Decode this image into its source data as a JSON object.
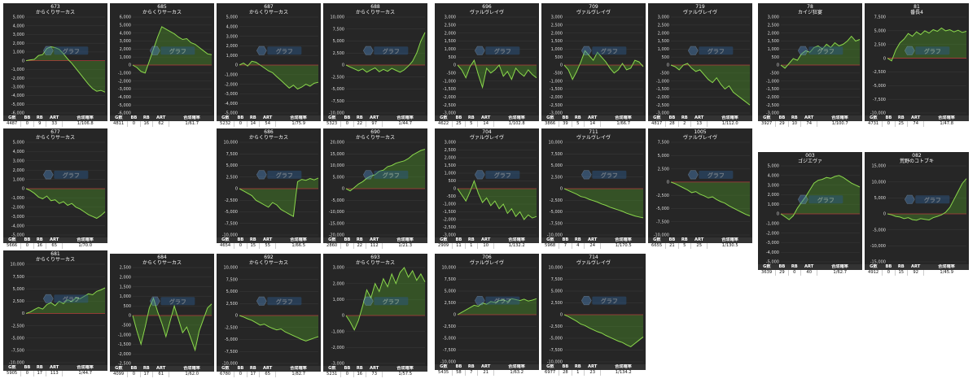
{
  "table_headers": [
    "G数",
    "BB",
    "RB",
    "ART",
    "合成確率"
  ],
  "watermark": "グラフ",
  "colors": {
    "line": "#8bd84c",
    "fill": "#4a8a28",
    "zero": "#b03a3a",
    "grid": "#3a3a3a",
    "bg": "#262626"
  },
  "chart_data": [
    {
      "type": "line",
      "id": "673",
      "title": "673",
      "subtitle": "からくりサーカス",
      "yticks": [
        5000,
        4000,
        3000,
        2000,
        1000,
        0,
        -1000,
        -2000,
        -3000,
        -4000,
        -5000,
        -6000
      ],
      "ylim": [
        -6000,
        5000
      ],
      "values": [
        0,
        100,
        150,
        600,
        700,
        1400,
        1600,
        1500,
        1300,
        800,
        200,
        -300,
        -900,
        -1500,
        -2100,
        -2700,
        -3200,
        -3500,
        -3400,
        -3600
      ],
      "stats": [
        "4487",
        "0",
        "9",
        "33",
        "1/106.8"
      ]
    },
    {
      "type": "line",
      "id": "685",
      "title": "685",
      "subtitle": "からくりサーカス",
      "yticks": [
        6000,
        5000,
        4000,
        3000,
        2000,
        1000,
        0,
        -1000,
        -2000,
        -3000,
        -4000,
        -5000,
        -6000
      ],
      "ylim": [
        -6000,
        6000
      ],
      "values": [
        0,
        -300,
        -800,
        -1000,
        500,
        2000,
        3500,
        4800,
        4500,
        4200,
        3900,
        3500,
        3200,
        3300,
        2800,
        2600,
        2200,
        1800,
        1400,
        1300
      ],
      "stats": [
        "4811",
        "0",
        "16",
        "62",
        "1/61.7"
      ]
    },
    {
      "type": "line",
      "id": "687",
      "title": "687",
      "subtitle": "からくりサーカス",
      "yticks": [
        5000,
        4000,
        3000,
        2000,
        1000,
        0,
        -1000,
        -2000,
        -3000,
        -4000,
        -5000
      ],
      "ylim": [
        -5000,
        5000
      ],
      "values": [
        0,
        200,
        -100,
        400,
        300,
        0,
        -300,
        -600,
        -800,
        -1200,
        -1600,
        -2000,
        -2400,
        -2100,
        -2500,
        -2300,
        -2000,
        -2200,
        -1900,
        -1800
      ],
      "stats": [
        "5232",
        "0",
        "14",
        "54",
        "1/75.9"
      ]
    },
    {
      "type": "line",
      "id": "688",
      "title": "688",
      "subtitle": "からくりサーカス",
      "yticks": [
        10000,
        7500,
        5000,
        2500,
        0,
        -2500,
        -5000,
        -7500,
        -10000
      ],
      "ylim": [
        -10000,
        10000
      ],
      "values": [
        0,
        -400,
        -800,
        -1200,
        -800,
        -1500,
        -1000,
        -600,
        -1400,
        -900,
        -1300,
        -700,
        -1100,
        -1500,
        -1000,
        -200,
        800,
        2500,
        5000,
        6800
      ],
      "stats": [
        "5323",
        "0",
        "22",
        "97",
        "1/44.7"
      ]
    },
    {
      "type": "line",
      "id": "696",
      "title": "696",
      "subtitle": "ヴァルヴレイヴ",
      "yticks": [
        3000,
        2500,
        2000,
        1500,
        1000,
        500,
        0,
        -500,
        -1000,
        -1500,
        -2000,
        -2500,
        -3000
      ],
      "ylim": [
        -3000,
        3000
      ],
      "values": [
        0,
        -300,
        -800,
        -100,
        300,
        -600,
        -1400,
        -200,
        -500,
        -300,
        0,
        -700,
        -400,
        -900,
        -200,
        -500,
        -700,
        -300,
        -600,
        -800
      ],
      "stats": [
        "4622",
        "25",
        "5",
        "14",
        "1/102.8"
      ]
    },
    {
      "type": "line",
      "id": "709",
      "title": "709",
      "subtitle": "ヴァルヴレイヴ",
      "yticks": [
        3000,
        2500,
        2000,
        1500,
        1000,
        500,
        0,
        -500,
        -1000,
        -1500,
        -2000,
        -2500,
        -3000
      ],
      "ylim": [
        -3000,
        3000
      ],
      "values": [
        0,
        -300,
        -900,
        -400,
        200,
        900,
        600,
        300,
        800,
        500,
        200,
        -200,
        -500,
        -300,
        100,
        -300,
        -200,
        300,
        200,
        -100
      ],
      "stats": [
        "3866",
        "39",
        "5",
        "14",
        "1/66.7"
      ]
    },
    {
      "type": "line",
      "id": "719",
      "title": "719",
      "subtitle": "ヴァルヴレイヴ",
      "yticks": [
        3000,
        2500,
        2000,
        1500,
        1000,
        500,
        0,
        -500,
        -1000,
        -1500,
        -2000,
        -2500,
        -3000
      ],
      "ylim": [
        -3000,
        3000
      ],
      "values": [
        0,
        -100,
        -300,
        0,
        100,
        -200,
        -400,
        -300,
        -600,
        -900,
        -1100,
        -800,
        -1200,
        -1500,
        -1300,
        -1700,
        -1900,
        -2100,
        -2300,
        -2500
      ],
      "stats": [
        "4817",
        "28",
        "2",
        "13",
        "1/112.0"
      ]
    },
    {
      "type": "line",
      "id": "78",
      "title": "78",
      "subtitle": "カイジ狂宴",
      "yticks": [
        3000,
        2500,
        2000,
        1500,
        1000,
        500,
        0,
        -500,
        -1000,
        -1500,
        -2000,
        -2500,
        -3000
      ],
      "ylim": [
        -3000,
        3000
      ],
      "values": [
        0,
        -200,
        100,
        400,
        300,
        700,
        900,
        800,
        1100,
        1200,
        1000,
        1300,
        1100,
        1400,
        1200,
        1300,
        1500,
        1800,
        1500,
        1600
      ],
      "stats": [
        "3927",
        "29",
        "10",
        "74",
        "1/100.7"
      ]
    },
    {
      "type": "line",
      "id": "81",
      "title": "81",
      "subtitle": "番長4",
      "yticks": [
        7500,
        5000,
        2500,
        0,
        -2500,
        -5000,
        -7500,
        -10000
      ],
      "ylim": [
        -10000,
        7500
      ],
      "values": [
        0,
        -500,
        1500,
        2800,
        3500,
        4500,
        4000,
        4800,
        4300,
        5000,
        4600,
        5200,
        4900,
        5500,
        5000,
        5200,
        4800,
        5100,
        4700,
        4900
      ],
      "stats": [
        "4731",
        "0",
        "25",
        "74",
        "1/47.8"
      ]
    },
    {
      "type": "line",
      "id": "677",
      "title": "677",
      "subtitle": "からくりサーカス",
      "yticks": [
        5000,
        4000,
        3000,
        2000,
        1000,
        0,
        -1000,
        -2000,
        -3000,
        -4000,
        -5000
      ],
      "ylim": [
        -5000,
        5000
      ],
      "values": [
        0,
        -200,
        -500,
        -900,
        -1100,
        -800,
        -1300,
        -1200,
        -1600,
        -1400,
        -1800,
        -1600,
        -2000,
        -2200,
        -2500,
        -2800,
        -3000,
        -3200,
        -2900,
        -2500
      ],
      "stats": [
        "5666",
        "0",
        "16",
        "65",
        "1/70.0"
      ]
    },
    {
      "type": "line",
      "id": "686",
      "title": "686",
      "subtitle": "からくりサーカス",
      "yticks": [
        10000,
        7500,
        5000,
        2500,
        0,
        -2500,
        -5000,
        -7500,
        -10000
      ],
      "ylim": [
        -10000,
        10000
      ],
      "values": [
        0,
        -500,
        -1000,
        -1500,
        -2500,
        -3000,
        -3500,
        -4000,
        -3000,
        -3500,
        -4500,
        -5000,
        -5500,
        -6000,
        1500,
        2000,
        1800,
        2200,
        1900,
        2300
      ],
      "stats": [
        "4654",
        "0",
        "15",
        "55",
        "1/66.5"
      ]
    },
    {
      "type": "line",
      "id": "690",
      "title": "690",
      "subtitle": "からくりサーカス",
      "yticks": [
        20000,
        15000,
        10000,
        5000,
        0,
        -5000,
        -10000,
        -15000,
        -20000
      ],
      "ylim": [
        -20000,
        20000
      ],
      "values": [
        0,
        -1000,
        500,
        2000,
        3000,
        4500,
        5500,
        6000,
        7500,
        8000,
        9500,
        10000,
        11000,
        11500,
        12000,
        13000,
        14500,
        15500,
        16500,
        17000
      ],
      "stats": [
        "2860",
        "0",
        "22",
        "112",
        "1/21.3"
      ]
    },
    {
      "type": "line",
      "id": "704",
      "title": "704",
      "subtitle": "ヴァルヴレイヴ",
      "yticks": [
        3000,
        2500,
        2000,
        1500,
        1000,
        500,
        0,
        -500,
        -1000,
        -1500,
        -2000,
        -2500,
        -3000
      ],
      "ylim": [
        -3000,
        3000
      ],
      "values": [
        0,
        -400,
        -800,
        -200,
        500,
        -300,
        -900,
        -600,
        -1100,
        -800,
        -1300,
        -1000,
        -1600,
        -1300,
        -1800,
        -1500,
        -2000,
        -1700,
        -1900,
        -1800
      ],
      "stats": [
        "2909",
        "11",
        "1",
        "10",
        "1/132.2"
      ]
    },
    {
      "type": "line",
      "id": "711",
      "title": "711",
      "subtitle": "ヴァルヴレイヴ",
      "yticks": [
        10000,
        7500,
        5000,
        2500,
        0,
        -2500,
        -5000,
        -7500,
        -10000
      ],
      "ylim": [
        -10000,
        10000
      ],
      "values": [
        0,
        -400,
        -800,
        -1200,
        -1700,
        -1900,
        -2300,
        -2600,
        -2900,
        -3300,
        -3600,
        -4000,
        -4300,
        -4600,
        -4900,
        -5300,
        -5600,
        -5900,
        -6100,
        -6300
      ],
      "stats": [
        "5968",
        "7",
        "4",
        "24",
        "1/170.5"
      ]
    },
    {
      "type": "line",
      "id": "1005",
      "title": "1005",
      "subtitle": "ヴァルヴレイヴ",
      "yticks": [
        7500,
        5000,
        2500,
        0,
        -2500,
        -5000,
        -7500,
        -10000
      ],
      "ylim": [
        -10000,
        7500
      ],
      "values": [
        0,
        -300,
        -700,
        -1100,
        -1500,
        -2000,
        -1800,
        -2300,
        -2600,
        -3000,
        -2800,
        -3300,
        -3700,
        -4000,
        -4500,
        -4900,
        -5300,
        -5700,
        -6100,
        -6400
      ],
      "stats": [
        "6655",
        "21",
        "5",
        "25",
        "1/130.5"
      ]
    },
    {
      "type": "line",
      "id": "003",
      "title": "003",
      "subtitle": "ゴジエヴァ",
      "yticks": [
        5000,
        4000,
        3000,
        2000,
        1000,
        0,
        -1000,
        -2000,
        -3000,
        -4000,
        -5000
      ],
      "ylim": [
        -5000,
        5000
      ],
      "values": [
        0,
        -300,
        -600,
        -200,
        600,
        1200,
        1800,
        2500,
        3200,
        3500,
        3600,
        3800,
        3700,
        3900,
        4000,
        3800,
        3500,
        3200,
        3000,
        2800
      ],
      "stats": [
        "3639",
        "29",
        "0",
        "40",
        "1/62.7"
      ]
    },
    {
      "type": "line",
      "id": "082",
      "title": "082",
      "subtitle": "荒野のコトブキ",
      "yticks": [
        15000,
        10000,
        5000,
        0,
        -5000,
        -10000,
        -15000
      ],
      "ylim": [
        -15000,
        15000
      ],
      "values": [
        0,
        -300,
        -800,
        -1000,
        -1500,
        -1200,
        -1800,
        -2000,
        -1500,
        -1700,
        -1900,
        -1200,
        -800,
        -300,
        500,
        2000,
        4500,
        7000,
        9500,
        11000
      ],
      "stats": [
        "4912",
        "0",
        "15",
        "92",
        "1/45.9"
      ]
    },
    {
      "type": "line",
      "id": "681",
      "title": "681",
      "subtitle": "からくりサーカス",
      "yticks": [
        10000,
        7500,
        5000,
        2500,
        0,
        -2500,
        -5000,
        -7500,
        -10000
      ],
      "ylim": [
        -10000,
        10000
      ],
      "values": [
        0,
        300,
        800,
        1200,
        900,
        1800,
        2200,
        1600,
        2500,
        2000,
        2800,
        2400,
        3200,
        3000,
        3500,
        4000,
        3800,
        4500,
        4800,
        5200
      ],
      "stats": [
        "5905",
        "0",
        "17",
        "113",
        "1/44.7"
      ]
    },
    {
      "type": "line",
      "id": "684",
      "title": "684",
      "subtitle": "からくりサーカス",
      "yticks": [
        2500,
        2000,
        1500,
        1000,
        500,
        0,
        -500,
        -1000,
        -1500,
        -2000,
        -2500
      ],
      "ylim": [
        -2500,
        2500
      ],
      "values": [
        0,
        -800,
        -1500,
        -600,
        400,
        900,
        200,
        -400,
        -1100,
        -300,
        500,
        -200,
        -900,
        -600,
        -1200,
        -1800,
        -800,
        -200,
        400,
        600
      ],
      "stats": [
        "4099",
        "0",
        "17",
        "61",
        "1/62.0"
      ]
    },
    {
      "type": "line",
      "id": "692",
      "title": "692",
      "subtitle": "からくりサーカス",
      "yticks": [
        10000,
        7500,
        5000,
        2500,
        0,
        -2500,
        -5000,
        -7500,
        -10000
      ],
      "ylim": [
        -10000,
        10000
      ],
      "values": [
        0,
        -300,
        -700,
        -1000,
        -1500,
        -2000,
        -1800,
        -2300,
        -2700,
        -3000,
        -2800,
        -3400,
        -3800,
        -4200,
        -4600,
        -5000,
        -5300,
        -5000,
        -4700,
        -4400
      ],
      "stats": [
        "6780",
        "0",
        "17",
        "65",
        "1/82.7"
      ]
    },
    {
      "type": "line",
      "id": "693",
      "title": "693",
      "subtitle": "からくりサーカス",
      "yticks": [
        3000,
        2000,
        1000,
        0,
        -1000,
        -2000,
        -3000
      ],
      "ylim": [
        -3000,
        3000
      ],
      "values": [
        0,
        -400,
        -900,
        -300,
        600,
        1600,
        1100,
        2000,
        1500,
        2300,
        1800,
        2600,
        2000,
        2700,
        3000,
        2400,
        2800,
        2200,
        2600,
        2100
      ],
      "stats": [
        "5231",
        "0",
        "16",
        "73",
        "1/57.5"
      ]
    },
    {
      "type": "line",
      "id": "706",
      "title": "706",
      "subtitle": "ヴァルヴレイヴ",
      "yticks": [
        10000,
        7500,
        5000,
        2500,
        0,
        -2500,
        -5000,
        -7500,
        -10000
      ],
      "ylim": [
        -10000,
        10000
      ],
      "values": [
        0,
        500,
        1000,
        1500,
        2000,
        1800,
        2500,
        2200,
        2800,
        2600,
        3000,
        3200,
        2800,
        3400,
        3200,
        3000,
        3300,
        2900,
        3100,
        3400
      ],
      "stats": [
        "5435",
        "58",
        "7",
        "21",
        "1/63.2"
      ]
    },
    {
      "type": "line",
      "id": "714",
      "title": "714",
      "subtitle": "ヴァルヴレイヴ",
      "yticks": [
        10000,
        7500,
        5000,
        2500,
        0,
        -2500,
        -5000,
        -7500,
        -10000
      ],
      "ylim": [
        -10000,
        10000
      ],
      "values": [
        0,
        -400,
        -900,
        -1400,
        -2000,
        -2300,
        -2800,
        -3200,
        -3600,
        -3900,
        -4400,
        -4800,
        -5200,
        -5600,
        -5900,
        -6400,
        -6800,
        -6100,
        -5400,
        -4700
      ],
      "stats": [
        "6977",
        "28",
        "1",
        "23",
        "1/134.2"
      ]
    }
  ]
}
